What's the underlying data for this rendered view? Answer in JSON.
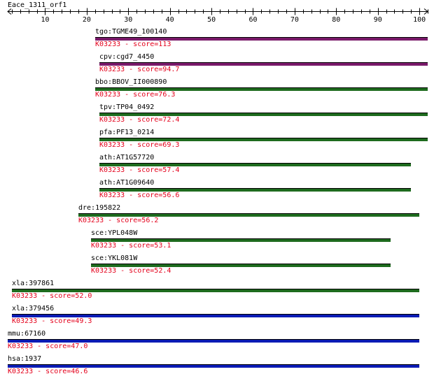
{
  "query": {
    "name": "Eace_1311_orf1",
    "length": 102,
    "ruler_ticks": [
      "10",
      "20",
      "30",
      "40",
      "50",
      "60",
      "70",
      "80",
      "90",
      "100"
    ]
  },
  "colors": {
    "purple": "#7a1a6a",
    "green": "#1e6b1e",
    "blue": "#0b1bb5",
    "score_text": "#e4001b"
  },
  "hits": [
    {
      "gene": "tgo:TGME49_100140",
      "ko_score": "K03233 - score=113",
      "start": 22,
      "end": 102,
      "color": "purple"
    },
    {
      "gene": "cpv:cgd7_4450",
      "ko_score": "K03233 - score=94.7",
      "start": 23,
      "end": 102,
      "color": "purple"
    },
    {
      "gene": "bbo:BBOV_II000890",
      "ko_score": "K03233 - score=76.3",
      "start": 22,
      "end": 102,
      "color": "green"
    },
    {
      "gene": "tpv:TP04_0492",
      "ko_score": "K03233 - score=72.4",
      "start": 23,
      "end": 102,
      "color": "green"
    },
    {
      "gene": "pfa:PF13_0214",
      "ko_score": "K03233 - score=69.3",
      "start": 23,
      "end": 102,
      "color": "green"
    },
    {
      "gene": "ath:AT1G57720",
      "ko_score": "K03233 - score=57.4",
      "start": 23,
      "end": 98,
      "color": "green"
    },
    {
      "gene": "ath:AT1G09640",
      "ko_score": "K03233 - score=56.6",
      "start": 23,
      "end": 98,
      "color": "green"
    },
    {
      "gene": "dre:195822",
      "ko_score": "K03233 - score=56.2",
      "start": 18,
      "end": 100,
      "color": "green"
    },
    {
      "gene": "sce:YPL048W",
      "ko_score": "K03233 - score=53.1",
      "start": 21,
      "end": 93,
      "color": "green"
    },
    {
      "gene": "sce:YKL081W",
      "ko_score": "K03233 - score=52.4",
      "start": 21,
      "end": 93,
      "color": "green"
    },
    {
      "gene": "xla:397861",
      "ko_score": "K03233 - score=52.0",
      "start": 2,
      "end": 100,
      "color": "green"
    },
    {
      "gene": "xla:379456",
      "ko_score": "K03233 - score=49.3",
      "start": 2,
      "end": 100,
      "color": "blue"
    },
    {
      "gene": "mmu:67160",
      "ko_score": "K03233 - score=47.0",
      "start": 1,
      "end": 100,
      "color": "blue"
    },
    {
      "gene": "hsa:1937",
      "ko_score": "K03233 - score=46.6",
      "start": 1,
      "end": 100,
      "color": "blue"
    }
  ]
}
